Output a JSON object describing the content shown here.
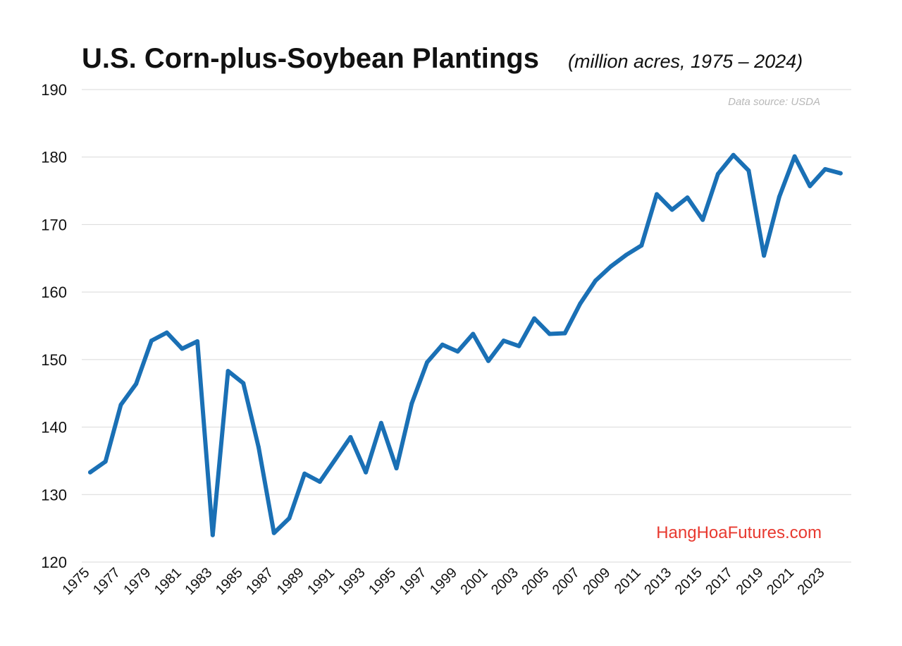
{
  "chart_data": {
    "type": "line",
    "title": "U.S. Corn-plus-Soybean Plantings",
    "subtitle": "(million acres, 1975 – 2024)",
    "source_note": "Data source: USDA",
    "watermark": "HangHoaFutures.com",
    "xlabel": "",
    "ylabel": "",
    "ylim": [
      120,
      190
    ],
    "yticks": [
      120,
      130,
      140,
      150,
      160,
      170,
      180,
      190
    ],
    "grid": true,
    "legend": "none",
    "x_tick_labels": [
      "1975",
      "1977",
      "1979",
      "1981",
      "1983",
      "1985",
      "1987",
      "1989",
      "1991",
      "1993",
      "1995",
      "1997",
      "1999",
      "2001",
      "2003",
      "2005",
      "2007",
      "2009",
      "2011",
      "2013",
      "2015",
      "2017",
      "2019",
      "2021",
      "2023"
    ],
    "series": [
      {
        "name": "Corn + Soybean Plantings",
        "color": "#1a70b5",
        "x": [
          1975,
          1976,
          1977,
          1978,
          1979,
          1980,
          1981,
          1982,
          1983,
          1984,
          1985,
          1986,
          1987,
          1988,
          1989,
          1990,
          1991,
          1992,
          1993,
          1994,
          1995,
          1996,
          1997,
          1998,
          1999,
          2000,
          2001,
          2002,
          2003,
          2004,
          2005,
          2006,
          2007,
          2008,
          2009,
          2010,
          2011,
          2012,
          2013,
          2014,
          2015,
          2016,
          2017,
          2018,
          2019,
          2020,
          2021,
          2022,
          2023,
          2024
        ],
        "values": [
          133.3,
          134.9,
          143.3,
          146.4,
          152.8,
          154.0,
          151.6,
          152.7,
          124.0,
          148.3,
          146.5,
          137.0,
          124.3,
          126.5,
          133.1,
          131.9,
          135.2,
          138.5,
          133.3,
          140.6,
          133.9,
          143.5,
          149.6,
          152.2,
          151.2,
          153.8,
          149.8,
          152.8,
          152.0,
          156.1,
          153.8,
          153.9,
          158.3,
          161.7,
          163.8,
          165.5,
          166.9,
          174.5,
          172.2,
          174.0,
          170.7,
          177.5,
          180.3,
          178.0,
          165.4,
          174.1,
          180.1,
          175.7,
          178.2,
          177.6
        ]
      }
    ]
  }
}
